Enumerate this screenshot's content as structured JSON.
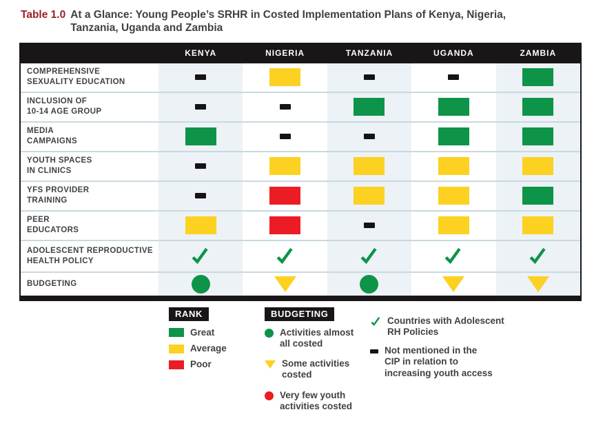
{
  "title": {
    "label": "Table 1.0",
    "line1": "At a Glance: Young People’s SRHR in Costed Implementation Plans of Kenya, Nigeria,",
    "line2": "Tanzania, Uganda and Zambia"
  },
  "table": {
    "columns": [
      "KENYA",
      "NIGERIA",
      "TANZANIA",
      "UGANDA",
      "ZAMBIA"
    ],
    "rows": [
      {
        "label": "COMPREHENSIVE\nSEXUALITY EDUCATION",
        "cells": [
          "dash",
          "average",
          "dash",
          "dash",
          "great"
        ]
      },
      {
        "label": "INCLUSION OF\n10-14 AGE GROUP",
        "cells": [
          "dash",
          "dash",
          "great",
          "great",
          "great"
        ]
      },
      {
        "label": "MEDIA\nCAMPAIGNS",
        "cells": [
          "great",
          "dash",
          "dash",
          "great",
          "great"
        ]
      },
      {
        "label": "YOUTH SPACES\nIN CLINICS",
        "cells": [
          "dash",
          "average",
          "average",
          "average",
          "average"
        ]
      },
      {
        "label": "YFS PROVIDER\nTRAINING",
        "cells": [
          "dash",
          "poor",
          "average",
          "average",
          "great"
        ]
      },
      {
        "label": "PEER\nEDUCATORS",
        "cells": [
          "average",
          "poor",
          "dash",
          "average",
          "average"
        ]
      },
      {
        "label": "ADOLESCENT REPRODUCTIVE\nHEALTH POLICY",
        "cells": [
          "check",
          "check",
          "check",
          "check",
          "check"
        ]
      },
      {
        "label": "BUDGETING",
        "cells": [
          "circle-green",
          "triangle-yellow",
          "circle-green",
          "triangle-yellow",
          "triangle-yellow"
        ]
      }
    ]
  },
  "legend": {
    "rank": {
      "title": "RANK",
      "items": [
        {
          "marker": "great",
          "label": "Great"
        },
        {
          "marker": "average",
          "label": "Average"
        },
        {
          "marker": "poor",
          "label": "Poor"
        }
      ]
    },
    "budgeting": {
      "title": "BUDGETING",
      "items": [
        {
          "marker": "circle-green",
          "label": "Activities almost\nall costed"
        },
        {
          "marker": "triangle-yellow",
          "label": "Some activities\ncosted"
        },
        {
          "marker": "circle-red",
          "label": "Very few youth\nactivities costed"
        }
      ]
    },
    "notes": [
      {
        "marker": "check",
        "label": "Countries with Adolescent\nRH Policies"
      },
      {
        "marker": "dash",
        "label": "Not mentioned in the\nCIP in relation to\nincreasing youth access"
      }
    ]
  },
  "colors": {
    "great": "#0d9448",
    "average": "#fcd122",
    "poor": "#ec1c24",
    "header_bg": "#1a1617",
    "shaded_column": "#ecf2f5",
    "divider": "#c9d8e0",
    "title_red": "#9a2025",
    "text_dark": "#414143"
  }
}
